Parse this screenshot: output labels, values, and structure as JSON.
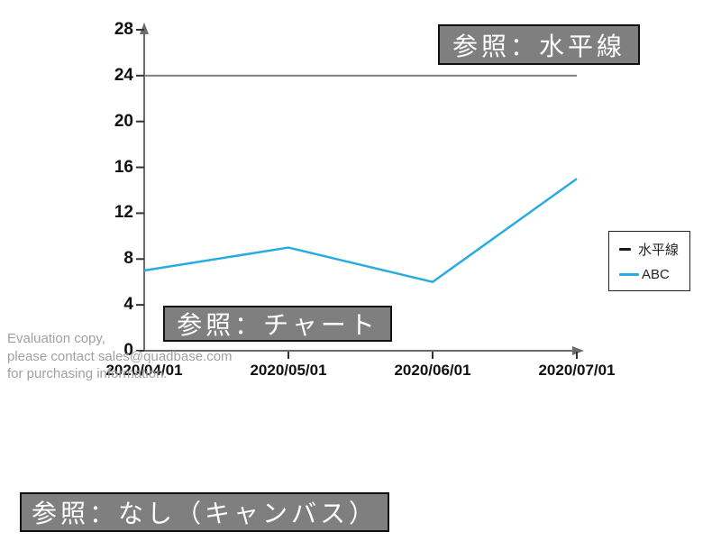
{
  "canvas": {
    "background": "#ffffff"
  },
  "annotations": {
    "horizontal_line_label": "参照：水平線",
    "chart_label": "参照：チャート",
    "canvas_label": "参照：なし（キャンバス）"
  },
  "watermark": {
    "lines": [
      "Evaluation copy,",
      "please contact sales@quadbase.com",
      "for purchasing information."
    ]
  },
  "legend": {
    "position": "right",
    "items": [
      {
        "label": "水平線",
        "marker": "black-dash",
        "marker_color": "#1a1a1a"
      },
      {
        "label": "ABC",
        "marker": "blue-line",
        "marker_color": "#29ABE2"
      }
    ]
  },
  "chart_data": {
    "type": "line",
    "title": "",
    "xlabel": "",
    "ylabel": "",
    "x": [
      "2020/04/01",
      "2020/05/01",
      "2020/06/01",
      "2020/07/01"
    ],
    "series": [
      {
        "name": "水平線",
        "kind": "horizontal-reference-line",
        "value": 24,
        "color": "#808080"
      },
      {
        "name": "ABC",
        "kind": "line",
        "values": [
          7,
          9,
          6,
          15
        ],
        "color": "#29ABE2"
      }
    ],
    "ylim": [
      0,
      28
    ],
    "yticks": [
      0,
      4,
      8,
      12,
      16,
      20,
      24,
      28
    ],
    "grid": false,
    "legend_position": "right"
  },
  "colors": {
    "axis": "#6b6b6b",
    "tick": "#333333",
    "tick_label": "#111111",
    "annotation_bg": "#7f7f7f",
    "annotation_text": "#ffffff",
    "watermark": "#a1a1a1"
  }
}
